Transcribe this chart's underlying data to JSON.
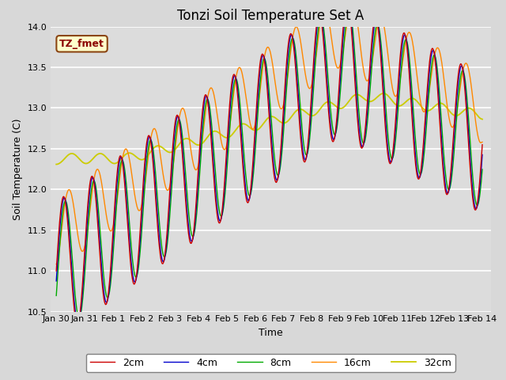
{
  "title": "Tonzi Soil Temperature Set A",
  "xlabel": "Time",
  "ylabel": "Soil Temperature (C)",
  "ylim": [
    10.5,
    14.0
  ],
  "x_tick_labels": [
    "Jan 30",
    "Jan 31",
    "Feb 1",
    "Feb 2",
    "Feb 3",
    "Feb 4",
    "Feb 5",
    "Feb 6",
    "Feb 7",
    "Feb 8",
    "Feb 9",
    "Feb 10",
    "Feb 11",
    "Feb 12",
    "Feb 13",
    "Feb 14"
  ],
  "x_tick_positions": [
    0,
    1,
    2,
    3,
    4,
    5,
    6,
    7,
    8,
    9,
    10,
    11,
    12,
    13,
    14,
    15
  ],
  "annotation_text": "TZ_fmet",
  "colors": {
    "2cm": "#cc0000",
    "4cm": "#0000cc",
    "8cm": "#00aa00",
    "16cm": "#ff8800",
    "32cm": "#cccc00"
  },
  "legend_labels": [
    "2cm",
    "4cm",
    "8cm",
    "16cm",
    "32cm"
  ],
  "bg_inner_color": "#dcdcdc",
  "title_fontsize": 12,
  "label_fontsize": 9,
  "tick_fontsize": 8
}
